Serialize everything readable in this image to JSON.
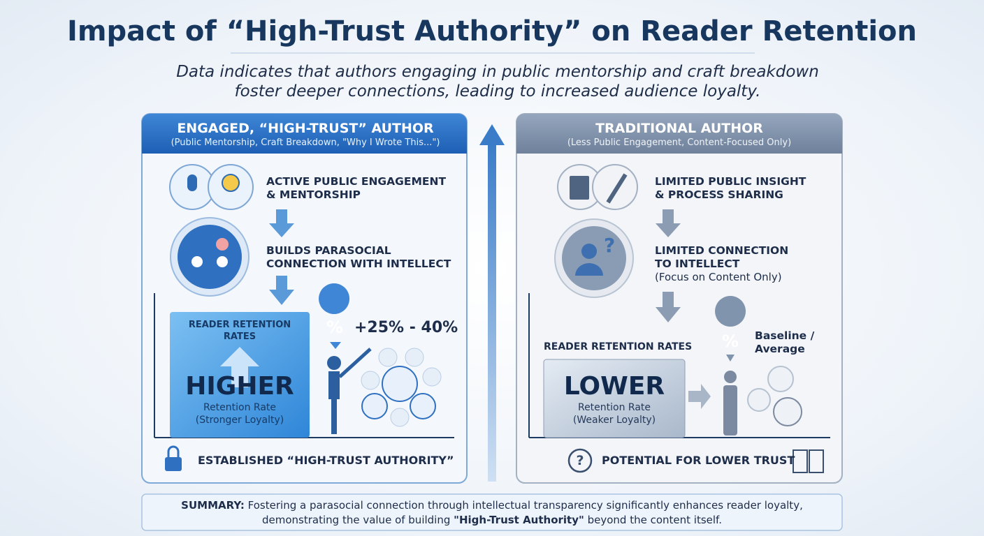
{
  "header": {
    "title": "Impact of “High-Trust Authority” on Reader Retention",
    "subtitle": [
      "Data indicates that authors engaging in public mentorship and craft breakdown",
      "foster deeper connections, leading to increased audience loyalty."
    ]
  },
  "left_panel": {
    "title": "ENGAGED, “HIGH-TRUST” AUTHOR",
    "subtitle": "(Public Mentorship, Craft Breakdown, \"Why I Wrote This...\")",
    "step1": [
      "ACTIVE PUBLIC ENGAGEMENT",
      "& MENTORSHIP"
    ],
    "step2": [
      "BUILDS PARASOCIAL",
      "CONNECTION WITH INTELLECT"
    ],
    "box_label": [
      "READER RETENTION",
      "RATES"
    ],
    "box_value": "HIGHER",
    "box_caption": [
      "Retention Rate",
      "(Stronger Loyalty)"
    ],
    "stat_icon": "%",
    "stat": "+25% - 40%",
    "footer": "ESTABLISHED “HIGH-TRUST AUTHORITY”"
  },
  "right_panel": {
    "title": "TRADITIONAL AUTHOR",
    "subtitle": "(Less Public Engagement, Content-Focused Only)",
    "step1": [
      "LIMITED PUBLIC INSIGHT",
      "& PROCESS SHARING"
    ],
    "step2": [
      "LIMITED CONNECTION",
      "TO INTELLECT"
    ],
    "step2_note": "(Focus on Content Only)",
    "step2_icon": "?",
    "box_label": "READER RETENTION RATES",
    "box_value": "LOWER",
    "box_caption": [
      "Retention Rate",
      "(Weaker Loyalty)"
    ],
    "stat_icon": "%",
    "stat": [
      "Baseline /",
      "Average"
    ],
    "footer_icon": "?",
    "footer": "POTENTIAL FOR LOWER TRUST"
  },
  "summary": {
    "label": "SUMMARY:",
    "line1": " Fostering a parasocial connection through intellectual transparency significantly enhances reader loyalty,",
    "line2_start": "demonstrating the value of building ",
    "line2_bold": "\"High-Trust Authority\"",
    "line2_end": " beyond the content itself."
  }
}
